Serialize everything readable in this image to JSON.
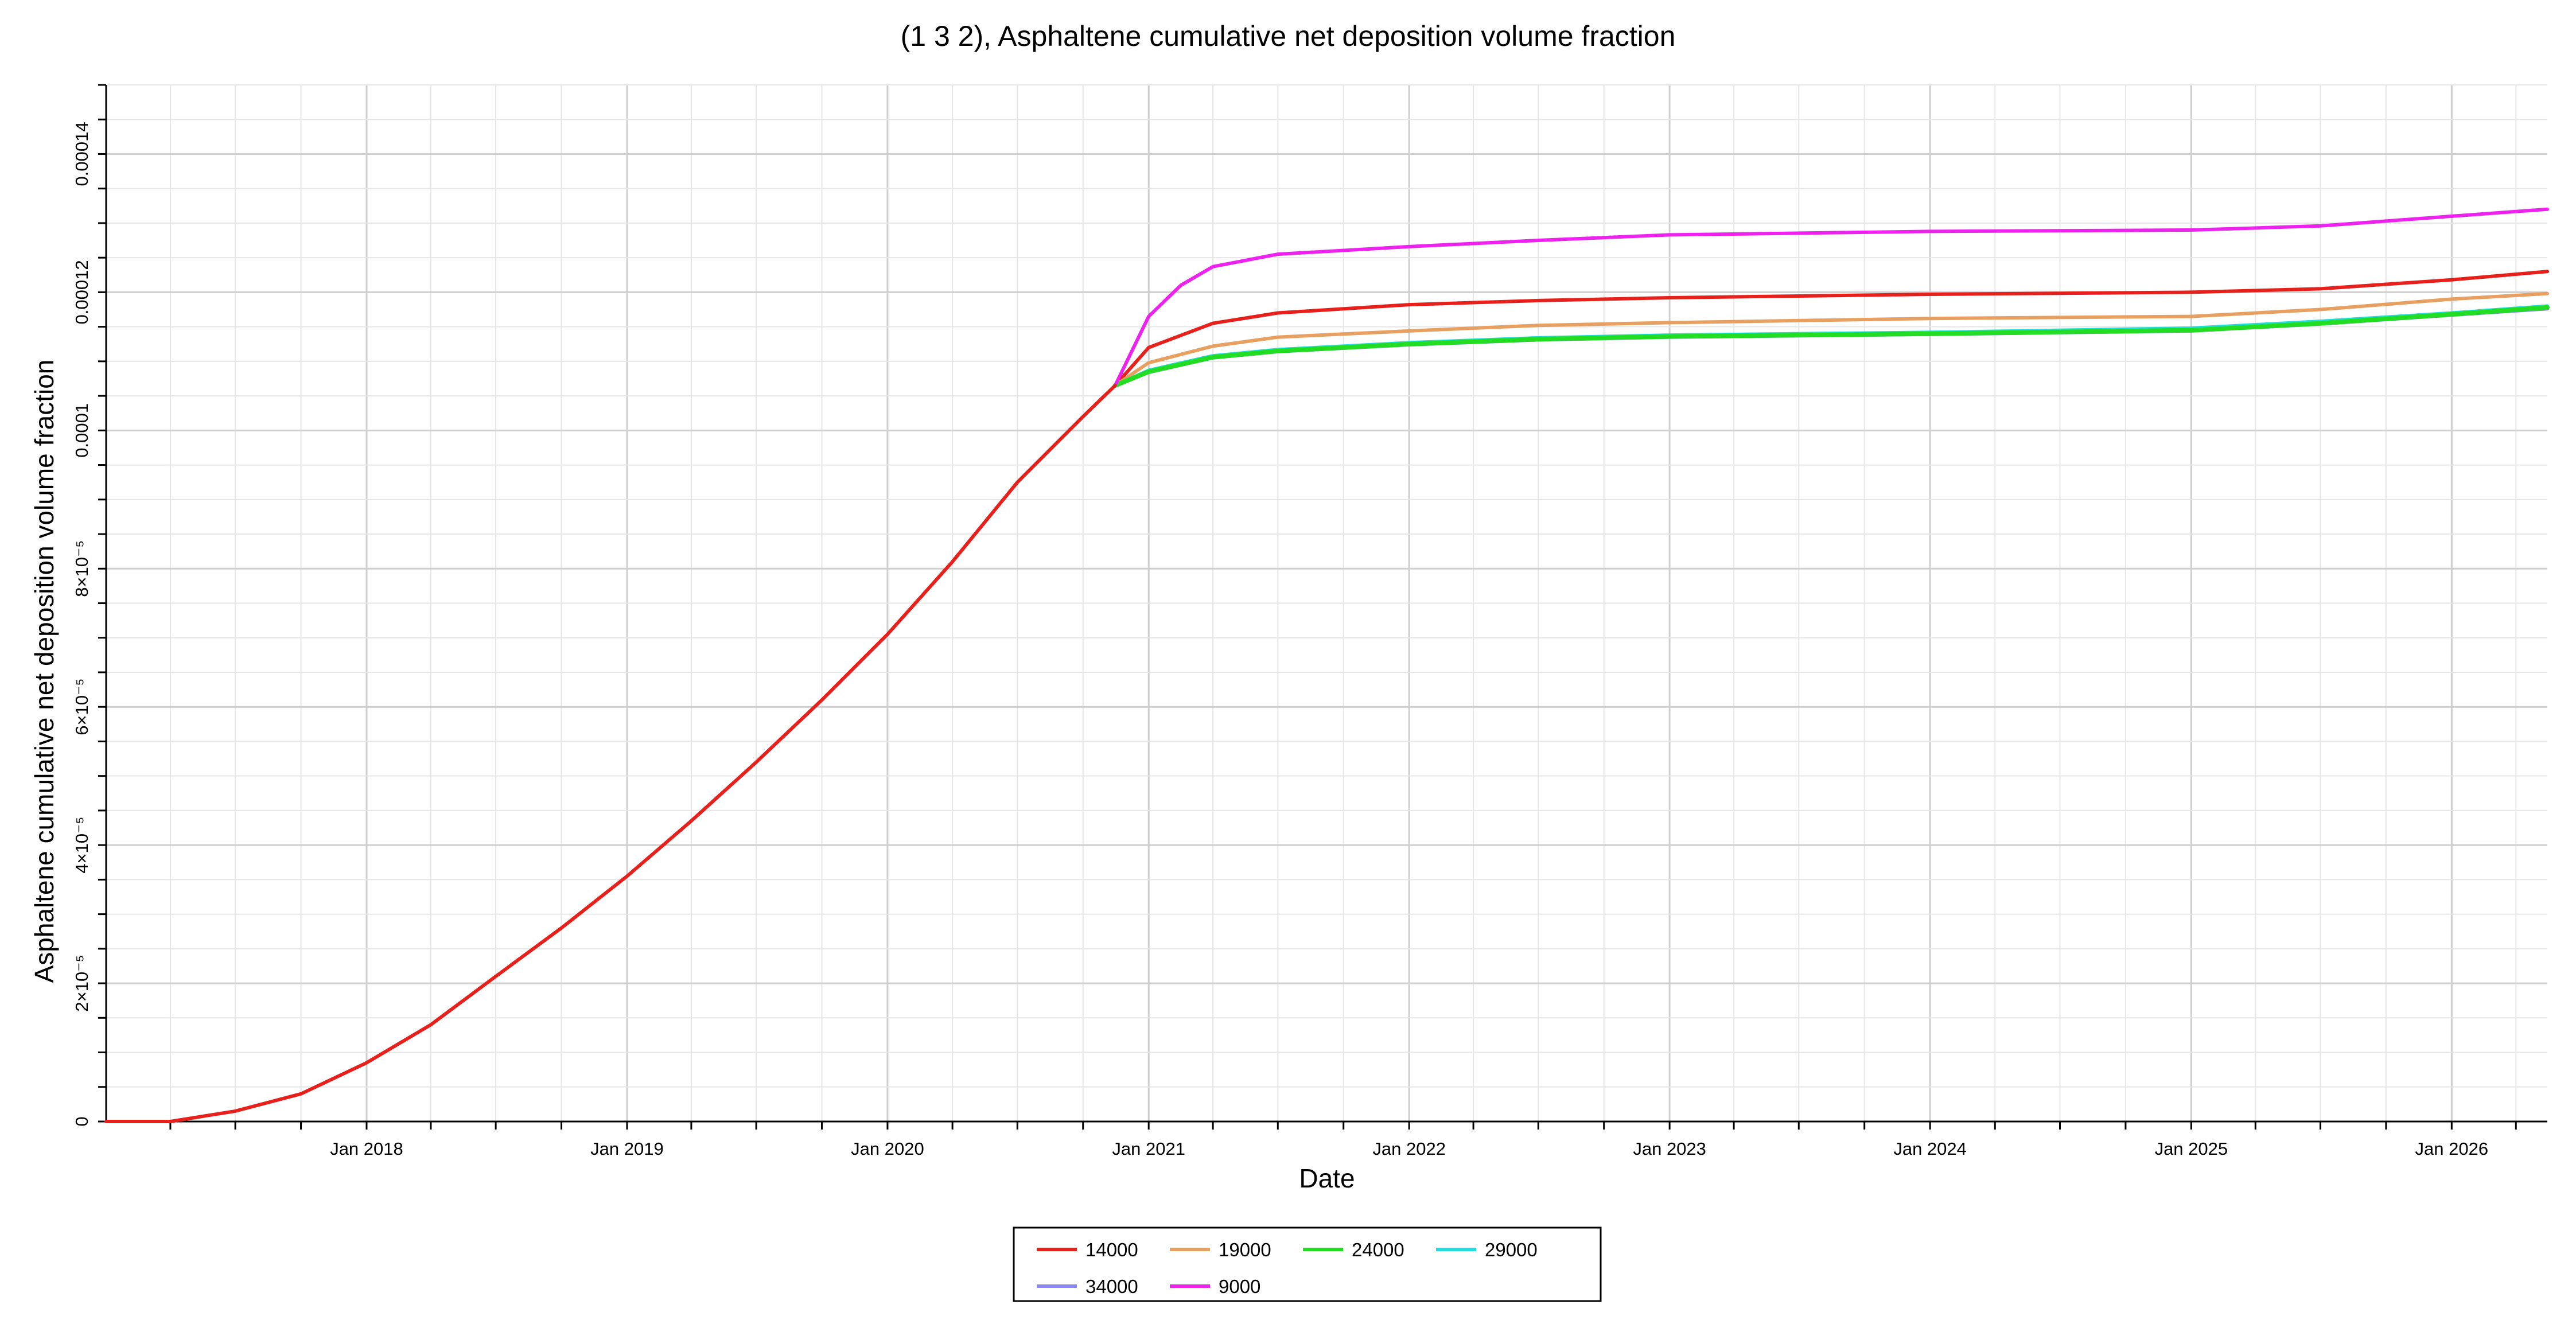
{
  "chart_data": {
    "type": "line",
    "title": "(1 3 2), Asphaltene cumulative net deposition volume fraction",
    "xlabel": "Date",
    "ylabel": "Asphaltene cumulative net deposition volume fraction",
    "x_axis": {
      "type": "date",
      "min": "2017-01-01",
      "max": "2026-05-15",
      "ticks": [
        {
          "date": "2018-01-01",
          "label": "Jan 2018"
        },
        {
          "date": "2019-01-01",
          "label": "Jan 2019"
        },
        {
          "date": "2020-01-01",
          "label": "Jan 2020"
        },
        {
          "date": "2021-01-01",
          "label": "Jan 2021"
        },
        {
          "date": "2022-01-01",
          "label": "Jan 2022"
        },
        {
          "date": "2023-01-01",
          "label": "Jan 2023"
        },
        {
          "date": "2024-01-01",
          "label": "Jan 2024"
        },
        {
          "date": "2025-01-01",
          "label": "Jan 2025"
        },
        {
          "date": "2026-01-01",
          "label": "Jan 2026"
        }
      ]
    },
    "y_axis": {
      "min": 0,
      "max": 0.00015,
      "ticks": [
        {
          "value": 0,
          "label": "0"
        },
        {
          "value": 2e-05,
          "label": "2×10⁻⁵"
        },
        {
          "value": 4e-05,
          "label": "4×10⁻⁵"
        },
        {
          "value": 6e-05,
          "label": "6×10⁻⁵"
        },
        {
          "value": 8e-05,
          "label": "8×10⁻⁵"
        },
        {
          "value": 0.0001,
          "label": "0.0001"
        },
        {
          "value": 0.00012,
          "label": "0.00012"
        },
        {
          "value": 0.00014,
          "label": "0.00014"
        }
      ]
    },
    "grid": true,
    "legend_position": "bottom-center",
    "shared_early_curve": {
      "x": [
        "2017-01-01",
        "2017-04-01",
        "2017-07-01",
        "2017-10-01",
        "2018-01-01",
        "2018-04-01",
        "2018-07-01",
        "2018-10-01",
        "2019-01-01",
        "2019-04-01",
        "2019-07-01",
        "2019-10-01",
        "2020-01-01",
        "2020-04-01",
        "2020-07-01",
        "2020-10-01",
        "2020-11-15"
      ],
      "y": [
        0,
        0,
        1.5e-06,
        4e-06,
        8.5e-06,
        1.4e-05,
        2.1e-05,
        2.8e-05,
        3.55e-05,
        4.35e-05,
        5.2e-05,
        6.1e-05,
        7.05e-05,
        8.1e-05,
        9.25e-05,
        0.000102,
        0.0001065
      ]
    },
    "series": [
      {
        "name": "14000",
        "color": "#e8201c",
        "x": [
          "2020-11-15",
          "2021-01-01",
          "2021-04-01",
          "2021-07-01",
          "2022-01-01",
          "2022-07-01",
          "2023-01-01",
          "2024-01-01",
          "2025-01-01",
          "2025-07-01",
          "2026-01-01",
          "2026-05-15"
        ],
        "y": [
          0.0001065,
          0.000112,
          0.0001155,
          0.000117,
          0.0001182,
          0.0001188,
          0.0001192,
          0.0001197,
          0.00012,
          0.0001205,
          0.0001218,
          0.000123
        ]
      },
      {
        "name": "19000",
        "color": "#e8a060",
        "x": [
          "2020-11-15",
          "2021-01-01",
          "2021-04-01",
          "2021-07-01",
          "2022-01-01",
          "2022-07-01",
          "2023-01-01",
          "2024-01-01",
          "2025-01-01",
          "2025-07-01",
          "2026-01-01",
          "2026-05-15"
        ],
        "y": [
          0.0001065,
          0.0001098,
          0.0001122,
          0.0001135,
          0.0001144,
          0.0001152,
          0.0001156,
          0.0001162,
          0.0001165,
          0.0001175,
          0.000119,
          0.0001198
        ]
      },
      {
        "name": "24000",
        "color": "#22dd22",
        "x": [
          "2020-11-15",
          "2021-01-01",
          "2021-04-01",
          "2021-07-01",
          "2022-01-01",
          "2022-07-01",
          "2023-01-01",
          "2024-01-01",
          "2025-01-01",
          "2025-07-01",
          "2026-01-01",
          "2026-05-15"
        ],
        "y": [
          0.0001065,
          0.0001085,
          0.0001106,
          0.0001115,
          0.0001125,
          0.0001132,
          0.0001136,
          0.000114,
          0.0001145,
          0.0001155,
          0.0001168,
          0.0001178
        ]
      },
      {
        "name": "29000",
        "color": "#22dddd",
        "x": [
          "2020-11-15",
          "2021-01-01",
          "2021-04-01",
          "2021-07-01",
          "2022-01-01",
          "2022-07-01",
          "2023-01-01",
          "2024-01-01",
          "2025-01-01",
          "2025-07-01",
          "2026-01-01",
          "2026-05-15"
        ],
        "y": [
          0.0001065,
          0.0001087,
          0.0001108,
          0.0001117,
          0.0001127,
          0.0001134,
          0.0001138,
          0.0001142,
          0.0001148,
          0.0001158,
          0.000117,
          0.000118
        ]
      },
      {
        "name": "34000",
        "color": "#8888ee",
        "x": [
          "2020-11-15",
          "2021-01-01",
          "2021-04-01",
          "2021-07-01",
          "2022-01-01",
          "2022-07-01",
          "2023-01-01",
          "2024-01-01",
          "2025-01-01",
          "2025-07-01",
          "2026-01-01",
          "2026-05-15"
        ],
        "y": [
          0.0001065,
          0.0001084,
          0.0001105,
          0.0001114,
          0.0001124,
          0.0001131,
          0.0001135,
          0.0001139,
          0.0001144,
          0.0001154,
          0.0001167,
          0.0001176
        ]
      },
      {
        "name": "9000",
        "color": "#ee22ee",
        "x": [
          "2020-11-15",
          "2021-01-01",
          "2021-02-15",
          "2021-04-01",
          "2021-07-01",
          "2022-01-01",
          "2022-07-01",
          "2023-01-01",
          "2024-01-01",
          "2025-01-01",
          "2025-07-01",
          "2026-01-01",
          "2026-05-15"
        ],
        "y": [
          0.0001065,
          0.0001165,
          0.000121,
          0.0001237,
          0.0001255,
          0.0001266,
          0.0001275,
          0.0001283,
          0.0001288,
          0.000129,
          0.0001296,
          0.000131,
          0.000132
        ]
      }
    ]
  }
}
